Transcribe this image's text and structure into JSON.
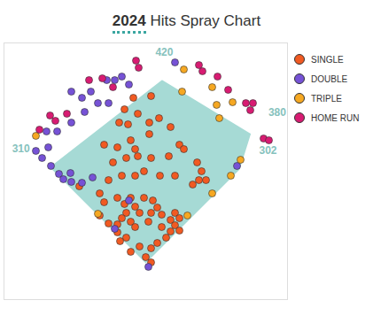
{
  "chart_data": {
    "type": "scatter",
    "title": "2024 Hits Spray Chart",
    "xlim": [
      -320,
      320
    ],
    "ylim": [
      -80,
      500
    ],
    "tick_labels": false,
    "grid": false,
    "legend": "top-right",
    "fence": {
      "angles": [
        -45,
        5,
        39,
        45
      ],
      "distances": [
        310,
        420,
        380,
        302
      ]
    },
    "series": [
      {
        "name": "SINGLE",
        "color": "#f15a22",
        "x": [
          -28,
          12,
          -48,
          -18,
          8,
          30,
          -60,
          -40,
          56,
          8,
          -34,
          76,
          -24,
          -64,
          -94,
          -74,
          -44,
          -18,
          12,
          52,
          86,
          116,
          126,
          120,
          136,
          106,
          66,
          32,
          -4,
          -24,
          -54,
          -84,
          -150,
          -104,
          -94,
          -64,
          -48,
          -34,
          -24,
          -14,
          -44,
          -54,
          -64,
          -34,
          -24,
          -4,
          16,
          26,
          12,
          36,
          6,
          56,
          66,
          76,
          56,
          46,
          26,
          12,
          -14,
          -44,
          -64,
          -58,
          -34,
          0,
          12,
          -104,
          -84,
          66,
          76,
          36
        ],
        "y": [
          376,
          380,
          350,
          340,
          320,
          330,
          320,
          316,
          310,
          294,
          280,
          270,
          260,
          264,
          270,
          230,
          240,
          244,
          240,
          244,
          260,
          230,
          210,
          190,
          190,
          180,
          200,
          200,
          210,
          200,
          200,
          190,
          176,
          160,
          140,
          150,
          136,
          150,
          130,
          116,
          116,
          104,
          90,
          96,
          84,
          150,
          144,
          128,
          116,
          112,
          96,
          100,
          88,
          76,
          74,
          60,
          48,
          36,
          40,
          60,
          72,
          52,
          28,
          16,
          4,
          110,
          92,
          116,
          104,
          84
        ]
      },
      {
        "name": "DOUBLE",
        "color": "#7652d6",
        "x": [
          66,
          -88,
          -70,
          -54,
          -38,
          -168,
          -124,
          -144,
          -138,
          -108,
          -84,
          -168,
          -200,
          -224,
          -220,
          -248,
          -234,
          -214,
          -196,
          -186,
          -170,
          -168,
          -144,
          -120,
          -38,
          -70,
          6,
          206
        ],
        "y": [
          456,
          416,
          416,
          424,
          406,
          390,
          390,
          376,
          344,
          364,
          364,
          320,
          300,
          300,
          264,
          256,
          240,
          222,
          204,
          192,
          206,
          186,
          184,
          196,
          144,
          80,
          -6,
          222
        ]
      },
      {
        "name": "TRIPLE",
        "color": "#f6a822",
        "x": [
          86,
          82,
          150,
          160,
          166,
          196,
          -248,
          192,
          150,
          214,
          -108,
          94
        ],
        "y": [
          440,
          390,
          400,
          360,
          330,
          366,
          290,
          200,
          160,
          236,
          114,
          110
        ]
      },
      {
        "name": "HOME RUN",
        "color": "#d81b72",
        "x": [
          -22,
          -16,
          120,
          128,
          162,
          -128,
          -98,
          -74,
          186,
          226,
          242,
          236,
          266,
          278,
          -178,
          -216,
          -204,
          -240
        ],
        "y": [
          460,
          444,
          450,
          436,
          424,
          416,
          420,
          400,
          394,
          364,
          364,
          348,
          284,
          280,
          340,
          336,
          324,
          304
        ]
      }
    ]
  }
}
